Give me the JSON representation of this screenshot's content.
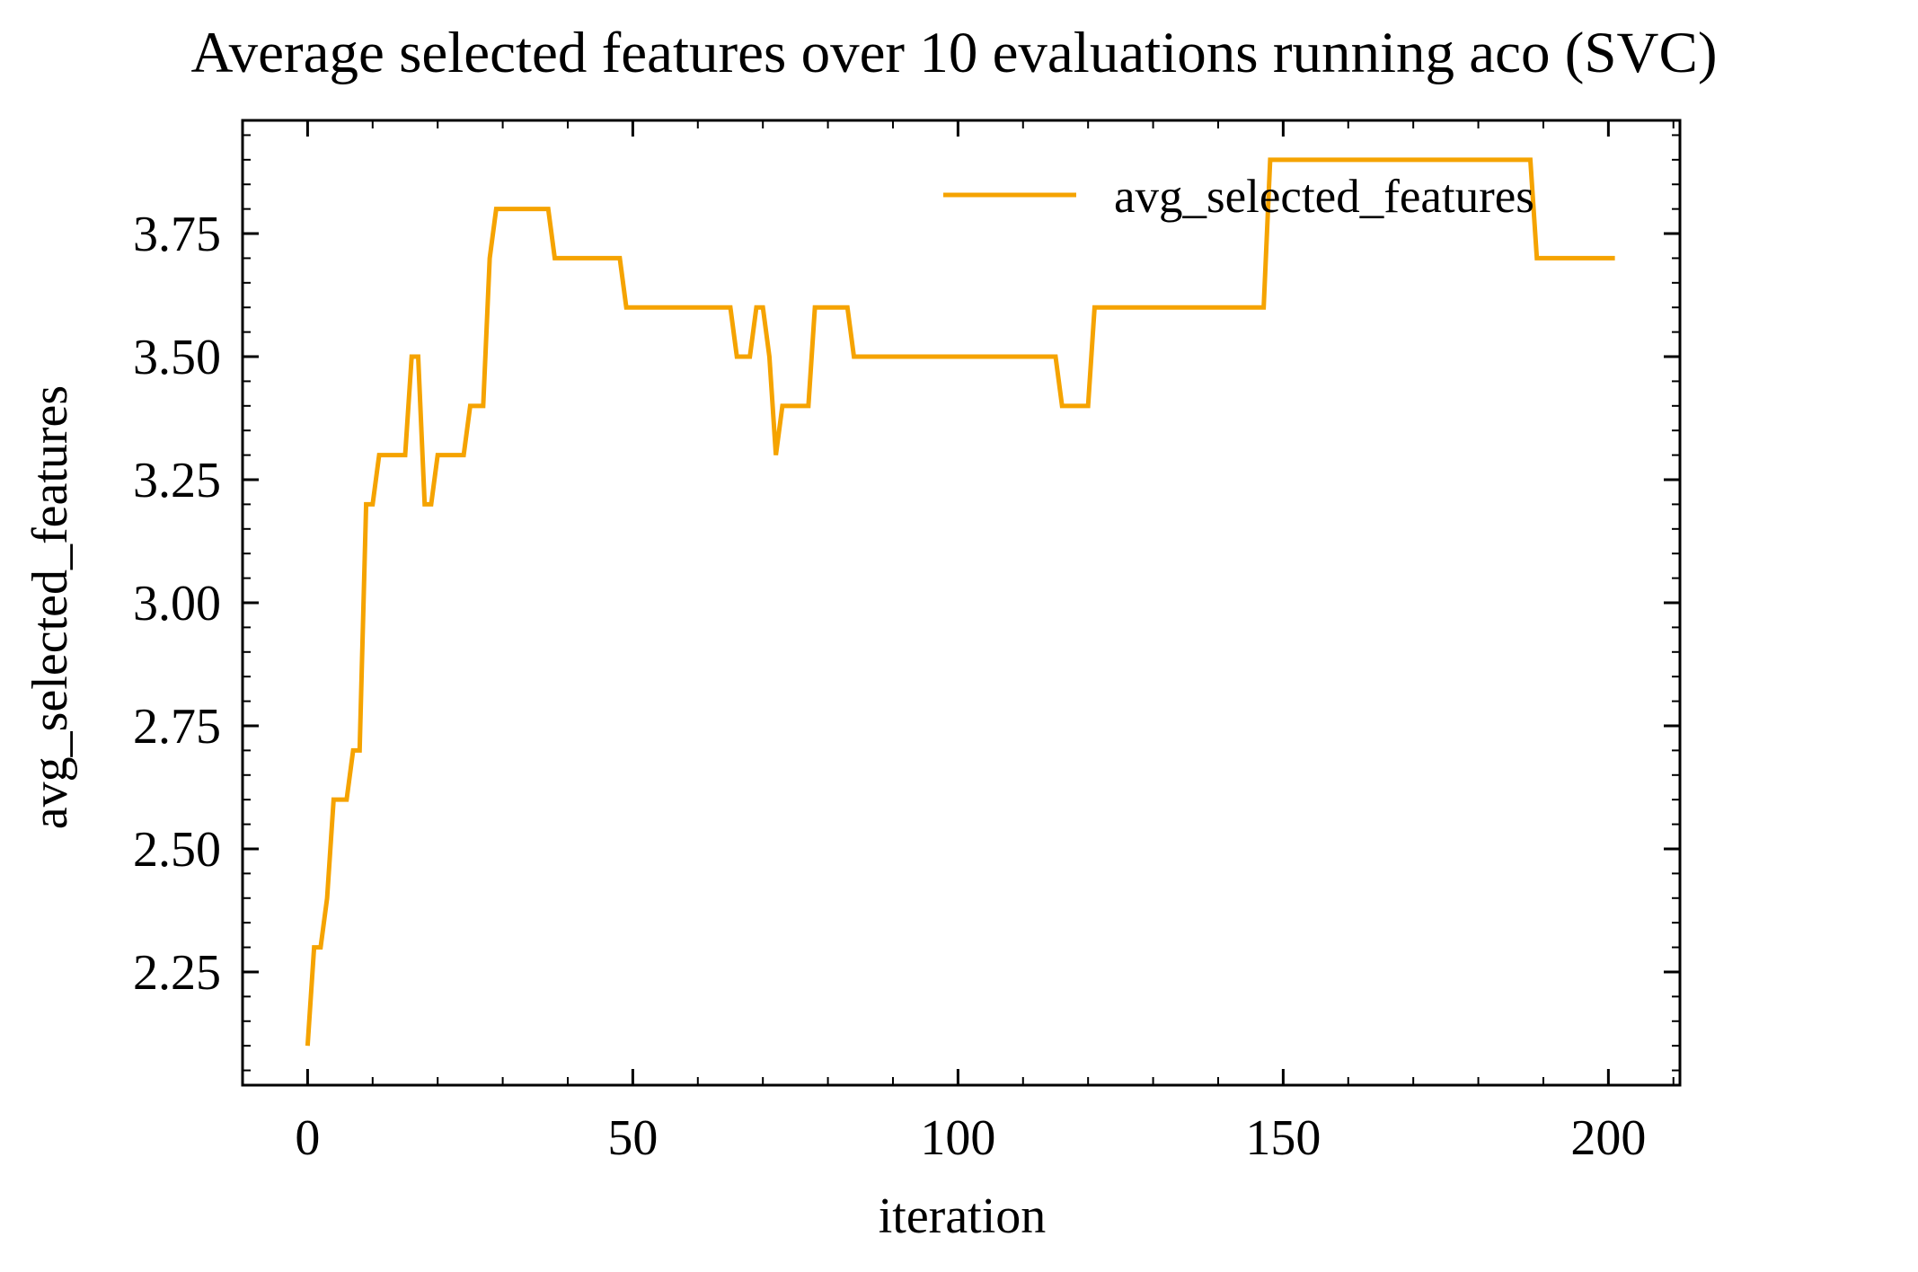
{
  "colors": {
    "series": "#f5a300",
    "axes": "#000000",
    "background": "#ffffff"
  },
  "chart_data": {
    "type": "line",
    "title": "Average selected features over 10 evaluations running aco (SVC)",
    "xlabel": "iteration",
    "ylabel": "avg_selected_features",
    "xlim": [
      -10,
      211
    ],
    "ylim": [
      2.02,
      3.98
    ],
    "xticks": [
      0,
      50,
      100,
      150,
      200
    ],
    "xtick_labels": [
      "0",
      "50",
      "100",
      "150",
      "200"
    ],
    "yticks": [
      2.25,
      2.5,
      2.75,
      3.0,
      3.25,
      3.5,
      3.75
    ],
    "ytick_labels": [
      "2.25",
      "2.50",
      "2.75",
      "3.00",
      "3.25",
      "3.50",
      "3.75"
    ],
    "grid": false,
    "legend_position": "top-right",
    "series": [
      {
        "name": "avg_selected_features",
        "x": [
          0,
          1,
          2,
          3,
          4,
          5,
          6,
          7,
          8,
          9,
          10,
          11,
          12,
          13,
          14,
          15,
          16,
          17,
          18,
          19,
          20,
          21,
          22,
          23,
          24,
          25,
          26,
          27,
          28,
          29,
          30,
          31,
          32,
          33,
          34,
          35,
          36,
          37,
          38,
          39,
          40,
          41,
          42,
          43,
          44,
          45,
          46,
          47,
          48,
          49,
          50,
          51,
          52,
          53,
          54,
          55,
          56,
          57,
          58,
          59,
          60,
          61,
          62,
          63,
          64,
          65,
          66,
          67,
          68,
          69,
          70,
          71,
          72,
          73,
          74,
          75,
          76,
          77,
          78,
          79,
          80,
          81,
          82,
          83,
          84,
          85,
          86,
          87,
          88,
          89,
          90,
          91,
          92,
          93,
          94,
          95,
          96,
          97,
          98,
          99,
          100,
          101,
          102,
          103,
          104,
          105,
          106,
          107,
          108,
          109,
          110,
          111,
          112,
          113,
          114,
          115,
          116,
          117,
          118,
          119,
          120,
          121,
          122,
          123,
          124,
          125,
          126,
          127,
          128,
          129,
          130,
          131,
          132,
          133,
          134,
          135,
          136,
          137,
          138,
          139,
          140,
          141,
          142,
          143,
          144,
          145,
          146,
          147,
          148,
          149,
          150,
          151,
          152,
          153,
          154,
          155,
          156,
          157,
          158,
          159,
          160,
          161,
          162,
          163,
          164,
          165,
          166,
          167,
          168,
          169,
          170,
          171,
          172,
          173,
          174,
          175,
          176,
          177,
          178,
          179,
          180,
          181,
          182,
          183,
          184,
          185,
          186,
          187,
          188,
          189,
          190,
          191,
          192,
          193,
          194,
          195,
          196,
          197,
          198,
          199,
          200,
          201
        ],
        "y": [
          2.1,
          2.3,
          2.3,
          2.4,
          2.6,
          2.6,
          2.6,
          2.7,
          2.7,
          3.2,
          3.2,
          3.3,
          3.3,
          3.3,
          3.3,
          3.3,
          3.5,
          3.5,
          3.2,
          3.2,
          3.3,
          3.3,
          3.3,
          3.3,
          3.3,
          3.4,
          3.4,
          3.4,
          3.7,
          3.8,
          3.8,
          3.8,
          3.8,
          3.8,
          3.8,
          3.8,
          3.8,
          3.8,
          3.7,
          3.7,
          3.7,
          3.7,
          3.7,
          3.7,
          3.7,
          3.7,
          3.7,
          3.7,
          3.7,
          3.6,
          3.6,
          3.6,
          3.6,
          3.6,
          3.6,
          3.6,
          3.6,
          3.6,
          3.6,
          3.6,
          3.6,
          3.6,
          3.6,
          3.6,
          3.6,
          3.6,
          3.5,
          3.5,
          3.5,
          3.6,
          3.6,
          3.5,
          3.3,
          3.4,
          3.4,
          3.4,
          3.4,
          3.4,
          3.6,
          3.6,
          3.6,
          3.6,
          3.6,
          3.6,
          3.5,
          3.5,
          3.5,
          3.5,
          3.5,
          3.5,
          3.5,
          3.5,
          3.5,
          3.5,
          3.5,
          3.5,
          3.5,
          3.5,
          3.5,
          3.5,
          3.5,
          3.5,
          3.5,
          3.5,
          3.5,
          3.5,
          3.5,
          3.5,
          3.5,
          3.5,
          3.5,
          3.5,
          3.5,
          3.5,
          3.5,
          3.5,
          3.4,
          3.4,
          3.4,
          3.4,
          3.4,
          3.6,
          3.6,
          3.6,
          3.6,
          3.6,
          3.6,
          3.6,
          3.6,
          3.6,
          3.6,
          3.6,
          3.6,
          3.6,
          3.6,
          3.6,
          3.6,
          3.6,
          3.6,
          3.6,
          3.6,
          3.6,
          3.6,
          3.6,
          3.6,
          3.6,
          3.6,
          3.6,
          3.9,
          3.9,
          3.9,
          3.9,
          3.9,
          3.9,
          3.9,
          3.9,
          3.9,
          3.9,
          3.9,
          3.9,
          3.9,
          3.9,
          3.9,
          3.9,
          3.9,
          3.9,
          3.9,
          3.9,
          3.9,
          3.9,
          3.9,
          3.9,
          3.9,
          3.9,
          3.9,
          3.9,
          3.9,
          3.9,
          3.9,
          3.9,
          3.9,
          3.9,
          3.9,
          3.9,
          3.9,
          3.9,
          3.9,
          3.9,
          3.9,
          3.7,
          3.7,
          3.7,
          3.7,
          3.7,
          3.7,
          3.7,
          3.7,
          3.7,
          3.7,
          3.7,
          3.7,
          3.7
        ]
      }
    ]
  }
}
